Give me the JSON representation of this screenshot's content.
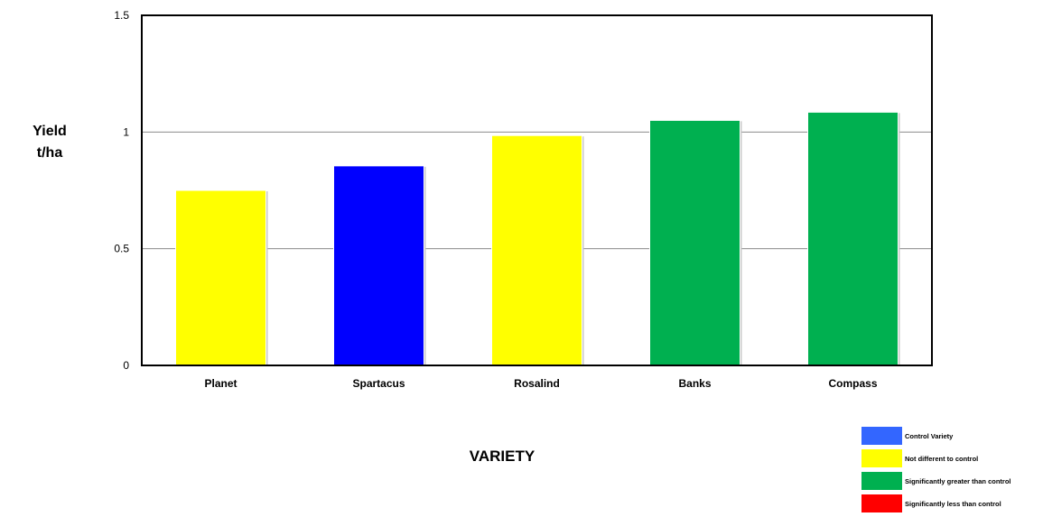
{
  "chart_data": {
    "type": "bar",
    "categories": [
      "Planet",
      "Spartacus",
      "Rosalind",
      "Banks",
      "Compass"
    ],
    "values": [
      0.75,
      0.855,
      0.985,
      1.05,
      1.085
    ],
    "bar_colors": [
      "#ffff00",
      "#0000ff",
      "#ffff00",
      "#00b050",
      "#00b050"
    ],
    "ylim": [
      0,
      1.5
    ],
    "yticks": [
      "0",
      "0.5",
      "1",
      "1.5"
    ],
    "ylabel": [
      "Yield",
      "t/ha"
    ],
    "xlabel": "VARIETY",
    "grid": true,
    "legend_position": "bottom-right",
    "legend": [
      {
        "label": "Control Variety",
        "color": "#3366ff"
      },
      {
        "label": "Not different to control",
        "color": "#ffff00"
      },
      {
        "label": "Significantly greater than control",
        "color": "#00b050"
      },
      {
        "label": "Significantly less than control",
        "color": "#ff0000"
      }
    ]
  }
}
